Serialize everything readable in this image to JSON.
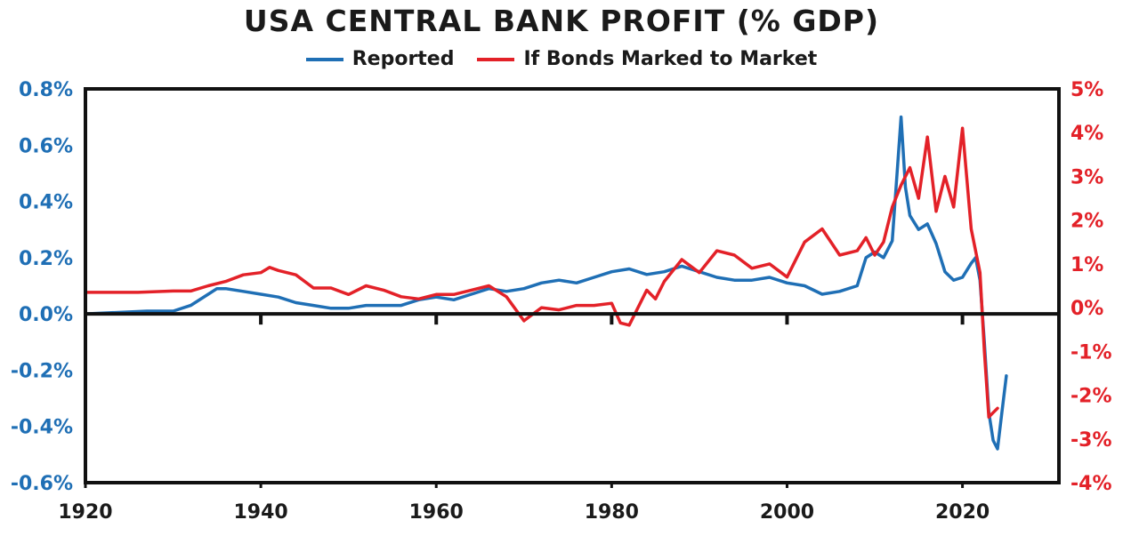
{
  "chart_data": {
    "type": "line",
    "title": "USA CENTRAL BANK PROFIT (% GDP)",
    "xlabel": "",
    "ylabel": "",
    "xlim": [
      1920,
      2031
    ],
    "x_ticks": [
      1920,
      1940,
      1960,
      1980,
      2000,
      2020
    ],
    "y_left_lim": [
      -0.6,
      0.8
    ],
    "y_left_ticks": [
      "0.8%",
      "0.6%",
      "0.4%",
      "0.2%",
      "0.0%",
      "-0.2%",
      "-0.4%",
      "-0.6%"
    ],
    "y_right_lim": [
      -4,
      5
    ],
    "y_right_ticks": [
      "5%",
      "4%",
      "3%",
      "2%",
      "1%",
      "0%",
      "-1%",
      "-2%",
      "-3%",
      "-4%"
    ],
    "zero_line": true,
    "grid": false,
    "legend_position": "top-center",
    "colors": {
      "reported": "#1f6fb5",
      "marked": "#e32128"
    },
    "series": [
      {
        "name": "Reported",
        "axis": "left",
        "color": "#1f6fb5",
        "x": [
          1920,
          1927,
          1930,
          1932,
          1934,
          1935,
          1936,
          1938,
          1940,
          1942,
          1944,
          1946,
          1948,
          1950,
          1952,
          1954,
          1956,
          1958,
          1960,
          1962,
          1964,
          1966,
          1968,
          1970,
          1972,
          1974,
          1976,
          1978,
          1980,
          1982,
          1984,
          1986,
          1988,
          1990,
          1992,
          1994,
          1996,
          1998,
          2000,
          2002,
          2004,
          2006,
          2008,
          2009,
          2010,
          2011,
          2012,
          2013,
          2013.5,
          2014,
          2015,
          2016,
          2017,
          2018,
          2019,
          2020,
          2021,
          2021.5,
          2022,
          2022.5,
          2023,
          2023.5,
          2024,
          2024.5,
          2025
        ],
        "y": [
          0.0,
          0.01,
          0.01,
          0.03,
          0.07,
          0.09,
          0.09,
          0.08,
          0.07,
          0.06,
          0.04,
          0.03,
          0.02,
          0.02,
          0.03,
          0.03,
          0.03,
          0.05,
          0.06,
          0.05,
          0.07,
          0.09,
          0.08,
          0.09,
          0.11,
          0.12,
          0.11,
          0.13,
          0.15,
          0.16,
          0.14,
          0.15,
          0.17,
          0.15,
          0.13,
          0.12,
          0.12,
          0.13,
          0.11,
          0.1,
          0.07,
          0.08,
          0.1,
          0.2,
          0.22,
          0.2,
          0.26,
          0.7,
          0.45,
          0.35,
          0.3,
          0.32,
          0.25,
          0.15,
          0.12,
          0.13,
          0.18,
          0.2,
          0.12,
          -0.1,
          -0.35,
          -0.45,
          -0.48,
          -0.35,
          -0.22
        ]
      },
      {
        "name": "If Bonds Marked to Market",
        "axis": "right",
        "color": "#e32128",
        "x": [
          1920,
          1926,
          1930,
          1932,
          1934,
          1936,
          1938,
          1940,
          1941,
          1942,
          1944,
          1946,
          1948,
          1950,
          1952,
          1954,
          1956,
          1958,
          1960,
          1962,
          1964,
          1966,
          1968,
          1970,
          1972,
          1974,
          1976,
          1978,
          1980,
          1981,
          1982,
          1984,
          1985,
          1986,
          1988,
          1990,
          1992,
          1994,
          1996,
          1998,
          2000,
          2002,
          2004,
          2006,
          2008,
          2009,
          2010,
          2011,
          2012,
          2013,
          2014,
          2015,
          2016,
          2017,
          2018,
          2019,
          2020,
          2021,
          2022,
          2022.5,
          2023,
          2023.5,
          2024
        ],
        "y": [
          0.35,
          0.35,
          0.38,
          0.38,
          0.5,
          0.6,
          0.75,
          0.8,
          0.92,
          0.85,
          0.75,
          0.45,
          0.45,
          0.3,
          0.5,
          0.4,
          0.25,
          0.2,
          0.3,
          0.3,
          0.4,
          0.5,
          0.25,
          -0.3,
          0.0,
          -0.05,
          0.05,
          0.05,
          0.1,
          -0.35,
          -0.4,
          0.4,
          0.2,
          0.6,
          1.1,
          0.8,
          1.3,
          1.2,
          0.9,
          1.0,
          0.7,
          1.5,
          1.8,
          1.2,
          1.3,
          1.6,
          1.2,
          1.5,
          2.3,
          2.8,
          3.2,
          2.5,
          3.9,
          2.2,
          3.0,
          2.3,
          4.1,
          1.8,
          0.8,
          -1.0,
          -2.5,
          -2.4,
          -2.3
        ]
      }
    ]
  }
}
